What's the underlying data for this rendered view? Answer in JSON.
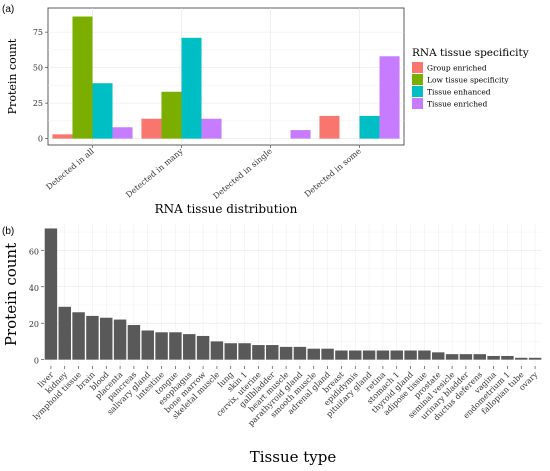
{
  "chart_data": [
    {
      "panel_label": "(a)",
      "type": "bar",
      "categories": [
        "Detected in all",
        "Detected in many",
        "Detected in single",
        "Detected in some"
      ],
      "series": [
        {
          "name": "Group enriched",
          "color": "#F8766D",
          "values": [
            3,
            14,
            0,
            16
          ]
        },
        {
          "name": "Low tissue specificity",
          "color": "#7CAE00",
          "values": [
            86,
            33,
            0,
            0
          ]
        },
        {
          "name": "Tissue enhanced",
          "color": "#00BFC4",
          "values": [
            39,
            71,
            0,
            16
          ]
        },
        {
          "name": "Tissue enriched",
          "color": "#C77CFF",
          "values": [
            8,
            14,
            6,
            58
          ]
        }
      ],
      "xlabel": "RNA tissue distribution",
      "ylabel": "Protein count",
      "ylim": [
        -4.5,
        92
      ],
      "yticks": [
        0,
        25,
        50,
        75
      ],
      "legend_title": "RNA tissue specificity",
      "legend_position": "right",
      "grid": true
    },
    {
      "panel_label": "(b)",
      "type": "bar",
      "color": "#595959",
      "categories": [
        "liver",
        "kidney",
        "lymphoid tissue",
        "brain",
        "blood",
        "placenta",
        "pancreas",
        "salivary gland",
        "intestine",
        "tongue",
        "esophagus",
        "bone marrow",
        "skeletal muscle",
        "lung",
        "skin 1",
        "cervix, uterine",
        "gallbladder",
        "heart muscle",
        "parathyroid gland",
        "smooth muscle",
        "adrenal gland",
        "breast",
        "epididymis",
        "pituitary gland",
        "retina",
        "stomach 1",
        "thyroid gland",
        "adipose tissue",
        "prostate",
        "seminal vesicle",
        "urinary bladder",
        "ductus deferens",
        "vagina",
        "endometrium 1",
        "fallopian tube",
        "ovary"
      ],
      "values": [
        72,
        29,
        26,
        24,
        23,
        22,
        19,
        16,
        15,
        15,
        14,
        13,
        10,
        9,
        9,
        8,
        8,
        7,
        7,
        6,
        6,
        5,
        5,
        5,
        5,
        5,
        5,
        5,
        4,
        3,
        3,
        3,
        2,
        2,
        1,
        1
      ],
      "xlabel": "Tissue type",
      "ylabel": "Protein count",
      "ylim": [
        -3.5,
        75
      ],
      "yticks": [
        0,
        20,
        40,
        60
      ],
      "grid": true
    }
  ]
}
